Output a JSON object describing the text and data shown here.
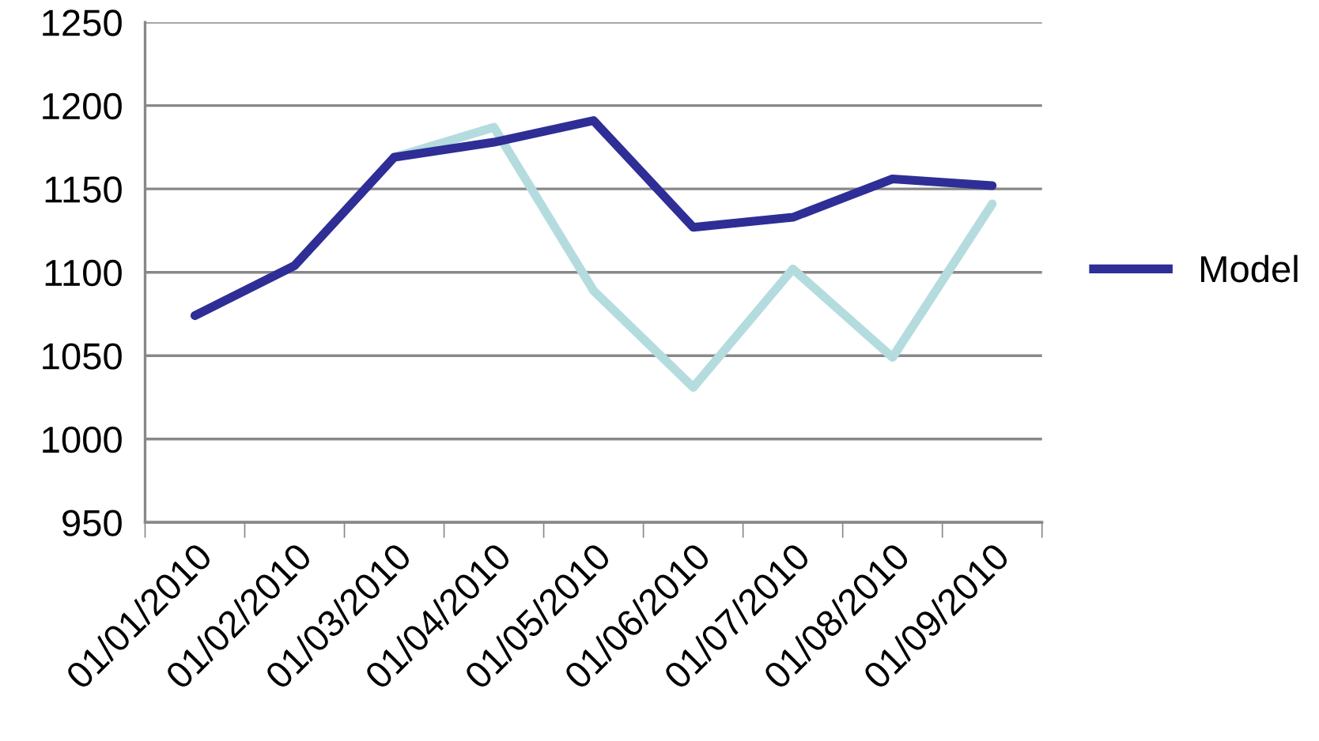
{
  "chart_data": {
    "type": "line",
    "categories": [
      "01/01/2010",
      "01/02/2010",
      "01/03/2010",
      "01/04/2010",
      "01/05/2010",
      "01/06/2010",
      "01/07/2010",
      "01/08/2010",
      "01/09/2010"
    ],
    "series": [
      {
        "color": "#b4dcdf",
        "values": [
          null,
          null,
          1169,
          1187,
          1089,
          1031,
          1102,
          1049,
          1141
        ]
      },
      {
        "name": "Model",
        "color": "#2e2e96",
        "values": [
          1074,
          1104,
          1169,
          1178,
          1191,
          1127,
          1133,
          1156,
          1152
        ]
      }
    ],
    "ylim": [
      950,
      1250
    ],
    "yticks": [
      950,
      1000,
      1050,
      1100,
      1150,
      1200,
      1250
    ],
    "grid": "y",
    "legend": "right",
    "marker": "none",
    "line_style": "solid"
  }
}
